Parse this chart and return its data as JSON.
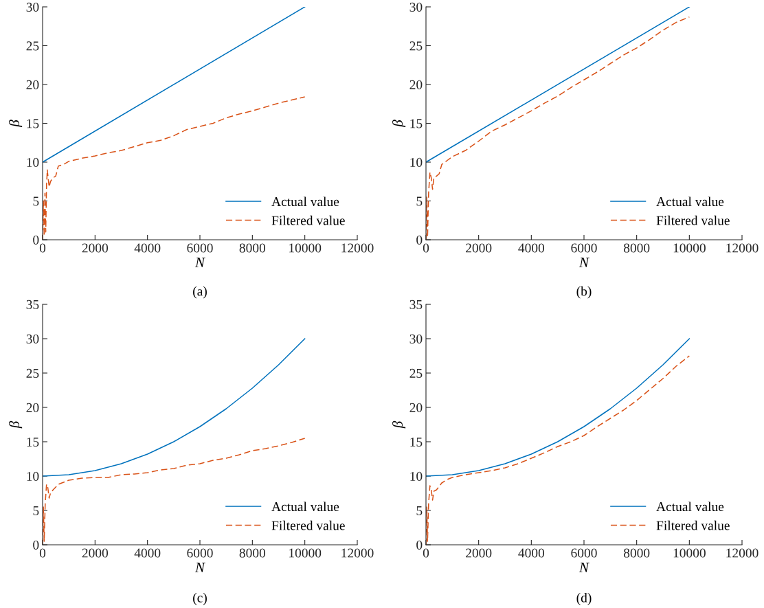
{
  "chart_data": [
    {
      "type": "line",
      "xlabel": "N",
      "ylabel": "β",
      "annotations": [
        "(a)"
      ],
      "xlim": [
        0,
        12000
      ],
      "xticks": [
        0,
        2000,
        4000,
        6000,
        8000,
        10000,
        12000
      ],
      "ylim": [
        0,
        30
      ],
      "yticks": [
        0,
        5,
        10,
        15,
        20,
        25,
        30
      ],
      "legend": "bottom right",
      "grid": false,
      "series": [
        {
          "name": "Actual value",
          "color": "#0072bd",
          "line_style": "solid",
          "x": [
            0,
            10000
          ],
          "values": [
            10,
            30
          ]
        },
        {
          "name": "Filtered value",
          "color": "#d95319",
          "line_style": "dashed",
          "x": [
            0,
            30,
            60,
            90,
            120,
            150,
            180,
            210,
            250,
            300,
            400,
            500,
            600,
            800,
            1000,
            1500,
            2000,
            2500,
            3000,
            3500,
            4000,
            4500,
            5000,
            5500,
            6000,
            6500,
            7000,
            7500,
            8000,
            8500,
            9000,
            9500,
            10000
          ],
          "values": [
            0,
            5,
            0.5,
            6,
            1,
            7,
            9,
            8,
            6.8,
            7.5,
            8,
            8.2,
            9.5,
            9.7,
            10.1,
            10.5,
            10.8,
            11.2,
            11.5,
            12,
            12.5,
            12.8,
            13.4,
            14.2,
            14.6,
            15,
            15.7,
            16.2,
            16.6,
            17.1,
            17.6,
            18,
            18.4
          ]
        }
      ]
    },
    {
      "type": "line",
      "xlabel": "N",
      "ylabel": "β",
      "annotations": [
        "(b)"
      ],
      "xlim": [
        0,
        12000
      ],
      "xticks": [
        0,
        2000,
        4000,
        6000,
        8000,
        10000,
        12000
      ],
      "ylim": [
        0,
        30
      ],
      "yticks": [
        0,
        5,
        10,
        15,
        20,
        25,
        30
      ],
      "legend": "bottom right",
      "grid": false,
      "series": [
        {
          "name": "Actual value",
          "color": "#0072bd",
          "line_style": "solid",
          "x": [
            0,
            10000
          ],
          "values": [
            10,
            30
          ]
        },
        {
          "name": "Filtered value",
          "color": "#d95319",
          "line_style": "dashed",
          "x": [
            0,
            30,
            60,
            100,
            150,
            200,
            250,
            300,
            400,
            500,
            600,
            800,
            1000,
            1500,
            2000,
            2500,
            3000,
            3500,
            4000,
            4500,
            5000,
            5500,
            6000,
            6500,
            7000,
            7500,
            8000,
            8500,
            9000,
            9500,
            10000
          ],
          "values": [
            0,
            5.5,
            0.3,
            6,
            8.7,
            8,
            6.5,
            8,
            8.2,
            8.5,
            9.7,
            10.2,
            10.7,
            11.5,
            12.7,
            14,
            14.8,
            15.7,
            16.6,
            17.6,
            18.5,
            19.6,
            20.6,
            21.6,
            22.7,
            23.8,
            24.7,
            25.8,
            27,
            28,
            28.7
          ]
        }
      ]
    },
    {
      "type": "line",
      "xlabel": "N",
      "ylabel": "β",
      "annotations": [
        "(c)"
      ],
      "xlim": [
        0,
        12000
      ],
      "xticks": [
        0,
        2000,
        4000,
        6000,
        8000,
        10000,
        12000
      ],
      "ylim": [
        0,
        35
      ],
      "yticks": [
        0,
        5,
        10,
        15,
        20,
        25,
        30,
        35
      ],
      "legend": "bottom right",
      "grid": false,
      "series": [
        {
          "name": "Actual value",
          "color": "#0072bd",
          "line_style": "solid",
          "x": [
            0,
            1000,
            2000,
            3000,
            4000,
            5000,
            6000,
            7000,
            8000,
            9000,
            10000
          ],
          "values": [
            10,
            10.2,
            10.8,
            11.8,
            13.2,
            15,
            17.2,
            19.8,
            22.8,
            26.2,
            30
          ]
        },
        {
          "name": "Filtered value",
          "color": "#d95319",
          "line_style": "dashed",
          "x": [
            0,
            30,
            60,
            100,
            150,
            200,
            250,
            300,
            400,
            600,
            800,
            1000,
            1500,
            2000,
            2500,
            3000,
            3500,
            4000,
            4500,
            5000,
            5500,
            6000,
            6500,
            7000,
            7500,
            8000,
            8500,
            9000,
            9500,
            10000
          ],
          "values": [
            0,
            5.5,
            0.5,
            6,
            8.8,
            8.3,
            6.8,
            7.5,
            8,
            8.8,
            9.1,
            9.4,
            9.7,
            9.8,
            9.8,
            10.2,
            10.3,
            10.5,
            10.9,
            11.1,
            11.6,
            11.8,
            12.3,
            12.6,
            13.1,
            13.7,
            14,
            14.4,
            14.9,
            15.5
          ]
        }
      ]
    },
    {
      "type": "line",
      "xlabel": "N",
      "ylabel": "β",
      "annotations": [
        "(d)"
      ],
      "xlim": [
        0,
        12000
      ],
      "xticks": [
        0,
        2000,
        4000,
        6000,
        8000,
        10000,
        12000
      ],
      "ylim": [
        0,
        35
      ],
      "yticks": [
        0,
        5,
        10,
        15,
        20,
        25,
        30,
        35
      ],
      "legend": "bottom right",
      "grid": false,
      "series": [
        {
          "name": "Actual value",
          "color": "#0072bd",
          "line_style": "solid",
          "x": [
            0,
            1000,
            2000,
            3000,
            4000,
            5000,
            6000,
            7000,
            8000,
            9000,
            10000
          ],
          "values": [
            10,
            10.2,
            10.8,
            11.8,
            13.2,
            15,
            17.2,
            19.8,
            22.8,
            26.2,
            30
          ]
        },
        {
          "name": "Filtered value",
          "color": "#d95319",
          "line_style": "dashed",
          "x": [
            0,
            30,
            60,
            100,
            150,
            200,
            250,
            300,
            400,
            600,
            800,
            1000,
            1500,
            2000,
            2500,
            3000,
            3500,
            4000,
            4500,
            5000,
            5500,
            6000,
            6500,
            7000,
            7500,
            8000,
            8500,
            9000,
            9500,
            10000
          ],
          "values": [
            0,
            5.5,
            0.5,
            6,
            8.6,
            8,
            6.5,
            7.8,
            8,
            9,
            9.5,
            9.8,
            10.2,
            10.5,
            10.8,
            11.2,
            11.8,
            12.6,
            13.4,
            14.3,
            15,
            15.9,
            17.2,
            18.4,
            19.6,
            21,
            22.6,
            24.2,
            26,
            27.5
          ]
        }
      ]
    }
  ]
}
